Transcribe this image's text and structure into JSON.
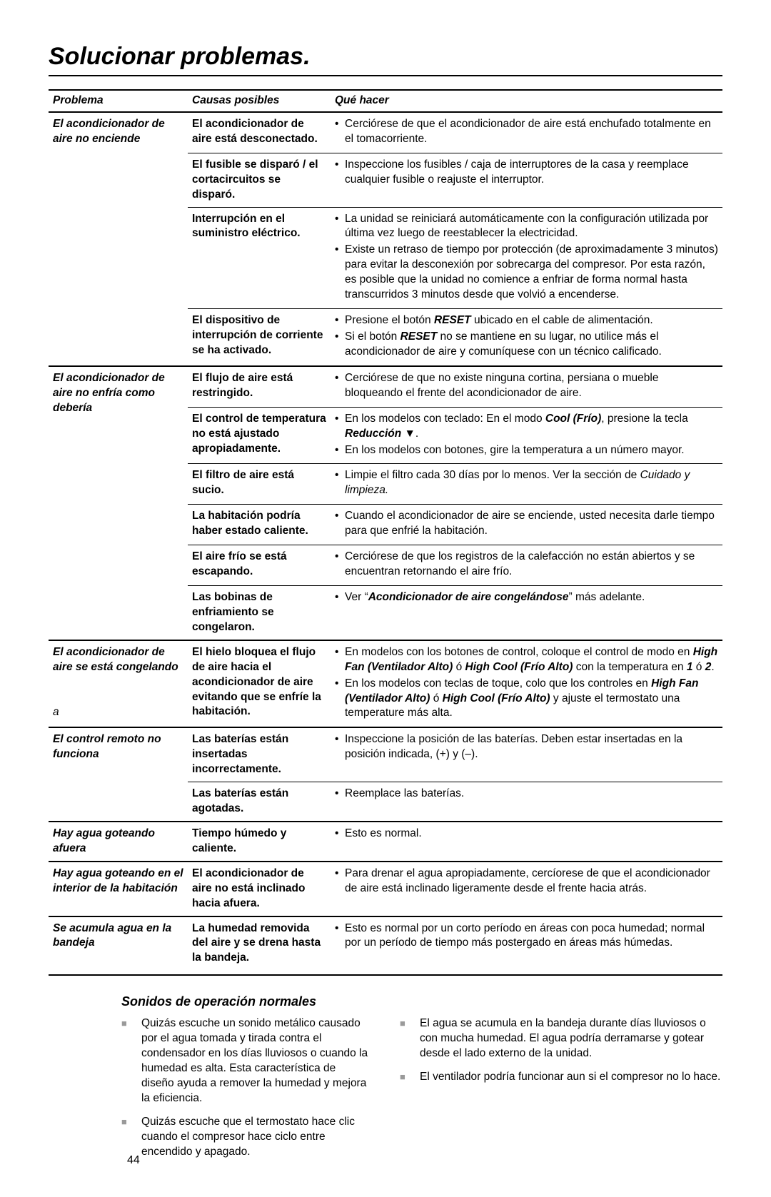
{
  "page": {
    "title": "Solucionar problemas.",
    "number": "44"
  },
  "headers": {
    "problem": "Problema",
    "causes": "Causas posibles",
    "todo": "Qué hacer"
  },
  "rows": [
    {
      "problem": "El acondicionador de aire no enciende",
      "thick": true,
      "causes": [
        {
          "cause": "El acondicionador de aire está desconectado.",
          "fix_html": "<ul class='fixlist'><li>Cerciórese de que el acondicionador de aire está enchufado totalmente en el tomacorriente.</li></ul>"
        },
        {
          "cause": "El fusible se disparó / el cortacircuitos se disparó.",
          "fix_html": "<ul class='fixlist'><li>Inspeccione los fusibles / caja de interruptores de la casa y reemplace cualquier fusible o reajuste el interruptor.</li></ul>"
        },
        {
          "cause": "Interrupción en el suministro eléctrico.",
          "fix_html": "<ul class='fixlist'><li>La unidad se reiniciará automáticamente con la configuración utilizada por última vez luego de reestablecer la electricidad.</li><li>Existe un retraso de tiempo por protección (de aproximadamente 3 minutos) para evitar la desconexión por sobrecarga del compresor. Por esta razón, es posible que la unidad no comience a enfriar de forma normal hasta transcurridos 3 minutos desde que volvió a encenderse.</li></ul>"
        },
        {
          "cause": "El dispositivo de interrupción de corriente se ha activado.",
          "fix_html": "<ul class='fixlist'><li>Presione el botón <b><i>RESET</i></b> ubicado en el cable de alimentación.</li><li>Si el botón <b><i>RESET</i></b> no se mantiene en su lugar, no utilice más el acondicionador de aire y comuníquese con un técnico calificado.</li></ul>"
        }
      ]
    },
    {
      "problem": "El acondicionador de aire no enfría como debería",
      "thick": true,
      "causes": [
        {
          "cause": "El flujo de aire está restringido.",
          "fix_html": "<ul class='fixlist'><li>Cerciórese de que no existe ninguna cortina, persiana o mueble bloqueando el frente del acondicionador de aire.</li></ul>"
        },
        {
          "cause": "El control de temperatura no está ajustado apropiadamente.",
          "fix_html": "<ul class='fixlist'><li>En los modelos con teclado: En el modo <b><i>Cool (Frío)</i></b>, presione la tecla <b><i>Reducción</i></b> ▼.</li><li>En los modelos con botones, gire la temperatura a un número mayor.</li></ul>"
        },
        {
          "cause": "El filtro de aire está sucio.",
          "fix_html": "<ul class='fixlist'><li>Limpie el filtro cada 30 días por lo menos. Ver la sección de <i>Cuidado y limpieza.</i></li></ul>"
        },
        {
          "cause": "La habitación podría haber estado caliente.",
          "fix_html": "<ul class='fixlist'><li>Cuando el acondicionador de aire se enciende, usted necesita darle tiempo para que enfrié la habitación.</li></ul>"
        },
        {
          "cause": "El aire frío se está escapando.",
          "fix_html": "<ul class='fixlist'><li>Cerciórese de que los registros de la calefacción no están abiertos y se encuentran retornando el aire frío.</li></ul>"
        },
        {
          "cause": "Las bobinas de enfriamiento se congelaron.",
          "fix_html": "<ul class='fixlist'><li>Ver “<b><i>Acondicionador de aire congelándose</i></b>” más adelante.</li></ul>"
        }
      ]
    },
    {
      "problem": "El acondicionador de aire se está congelando",
      "problem_suffix": "a",
      "thick": true,
      "causes": [
        {
          "cause": "El hielo bloquea el flujo de aire hacia el acondicionador de aire evitando que se enfríe la habitación.",
          "fix_html": "<ul class='fixlist'><li>En modelos con los botones de control, coloque el control de modo en <b><i>High Fan (Ventilador Alto)</i></b> ó <b><i>High Cool (Frío Alto)</i></b> con la temperatura en <b><i>1</i></b> ó <b><i>2</i></b>.</li><li>En los modelos con teclas de toque, colo que los controles en <b><i>High Fan (Ventilador Alto)</i></b> ó <b><i>High Cool (Frío Alto)</i></b> y ajuste el termostato una temperature más alta.</li></ul>"
        }
      ]
    },
    {
      "problem": "El control remoto no funciona",
      "thick": true,
      "causes": [
        {
          "cause": "Las baterías están insertadas incorrectamente.",
          "fix_html": "<ul class='fixlist'><li>Inspeccione la posición de las baterías. Deben estar insertadas en la posición indicada, (+) y (–).</li></ul>"
        },
        {
          "cause": "Las baterías están agotadas.",
          "fix_html": "<ul class='fixlist'><li>Reemplace las baterías.</li></ul>"
        }
      ]
    },
    {
      "problem": "Hay agua goteando afuera",
      "thick": true,
      "causes": [
        {
          "cause": "Tiempo húmedo y caliente.",
          "fix_html": "<ul class='fixlist'><li>Esto es normal.</li></ul>"
        }
      ]
    },
    {
      "problem": "Hay agua goteando en el interior de la habitación",
      "thick": true,
      "causes": [
        {
          "cause": "El acondicionador de aire no está inclinado hacia afuera.",
          "fix_html": "<ul class='fixlist'><li>Para drenar el agua apropiadamente, cercíorese de que el acondicionador de aire está inclinado ligeramente desde el frente hacia atrás.</li></ul>"
        }
      ]
    },
    {
      "problem": "Se acumula agua en la bandeja",
      "thick": true,
      "causes": [
        {
          "cause": "La humedad removida del aire y se drena hasta la bandeja.",
          "fix_html": "<ul class='fixlist'><li>Esto es normal por un corto período en áreas con poca humedad; normal por un período de tiempo más postergado en áreas más húmedas.</li></ul>"
        }
      ]
    }
  ],
  "sounds": {
    "title": "Sonidos de operación normales",
    "left": [
      "Quizás escuche un sonido metálico causado por el agua tomada y tirada contra el condensador en los días lluviosos o cuando la humedad es alta. Esta característica de diseño ayuda a remover la humedad y mejora la eficiencia.",
      "Quizás escuche que el termostato hace clic cuando el compresor hace ciclo entre encendido y apagado."
    ],
    "right": [
      "El agua se acumula en la bandeja durante días lluviosos o con mucha humedad. El agua podría derramarse y gotear desde el lado externo de la unidad.",
      "El ventilador podría funcionar aun si el compresor no lo hace."
    ]
  }
}
